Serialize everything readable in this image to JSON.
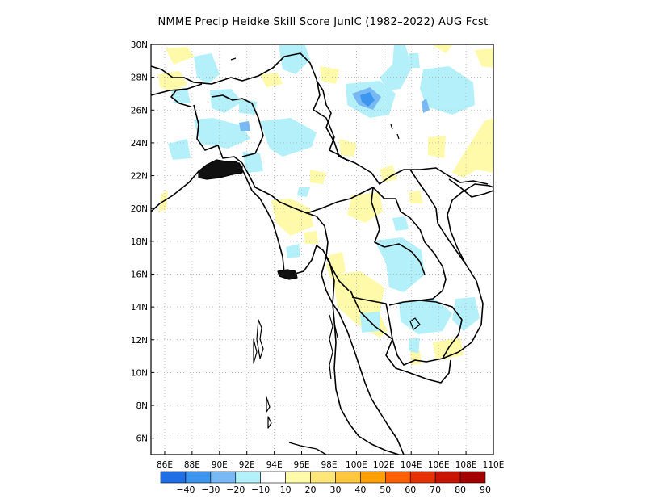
{
  "title": "NMME Precip Heidke Skill Score JunIC (1982–2022) AUG Fcst",
  "map": {
    "lon_range": [
      85,
      110
    ],
    "lat_range": [
      5,
      30
    ],
    "lon_ticks": [
      "86E",
      "88E",
      "90E",
      "92E",
      "94E",
      "96E",
      "98E",
      "100E",
      "102E",
      "104E",
      "106E",
      "108E",
      "110E"
    ],
    "lat_ticks": [
      "30N",
      "28N",
      "26N",
      "24N",
      "22N",
      "20N",
      "18N",
      "16N",
      "14N",
      "12N",
      "10N",
      "8N",
      "6N"
    ],
    "grid": true
  },
  "colorbar": {
    "labels": [
      "−40",
      "−30",
      "−20",
      "−10",
      "10",
      "20",
      "30",
      "40",
      "50",
      "60",
      "70",
      "80",
      "90"
    ],
    "colors": [
      "#1e6ee6",
      "#3c96f0",
      "#78b9f5",
      "#b4f0fa",
      "#ffffff",
      "#fffaaa",
      "#ffe678",
      "#ffc83c",
      "#ffa000",
      "#ff6000",
      "#e63200",
      "#c81400",
      "#a50000"
    ]
  },
  "palette": {
    "light_blue": "#b4f0fa",
    "mid_blue": "#78b9f5",
    "dark_blue": "#3c96f0",
    "light_yellow": "#fffaaa",
    "yellow": "#ffe678"
  }
}
